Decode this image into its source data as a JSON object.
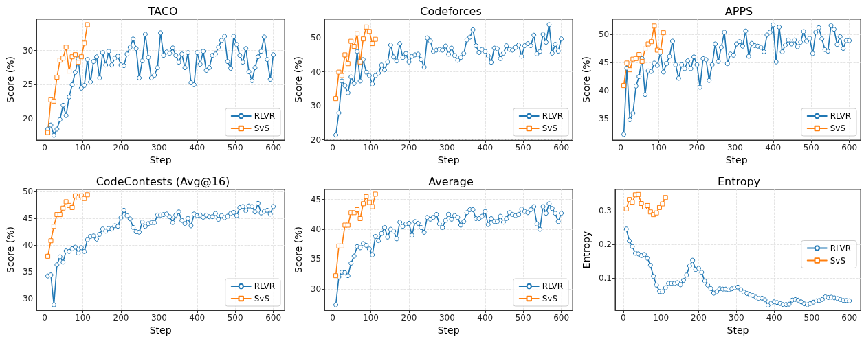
{
  "chart_data": [
    {
      "type": "line",
      "title": "TACO",
      "xlabel": "Step",
      "ylabel": "Score (%)",
      "xlim": [
        -21.6,
        629.6
      ],
      "xticks": [
        0,
        100,
        200,
        300,
        400,
        500,
        600
      ],
      "ylim": [
        16.9,
        34.6
      ],
      "yticks": [
        20,
        25,
        30
      ],
      "grid": true,
      "legend": "bottom right",
      "series": [
        {
          "name": "RLVR",
          "color": "#1f77b4",
          "marker": "circle",
          "x": [
            8,
            16,
            24,
            32,
            40,
            48,
            56,
            64,
            72,
            80,
            88,
            96,
            104,
            112,
            120,
            128,
            136,
            144,
            152,
            160,
            168,
            176,
            184,
            192,
            200,
            208,
            216,
            224,
            232,
            240,
            248,
            256,
            264,
            272,
            280,
            288,
            296,
            304,
            312,
            320,
            328,
            336,
            344,
            352,
            360,
            368,
            376,
            384,
            392,
            400,
            408,
            416,
            424,
            432,
            440,
            448,
            456,
            464,
            472,
            480,
            488,
            496,
            504,
            512,
            520,
            528,
            536,
            544,
            552,
            560,
            568,
            576,
            584,
            592,
            600
          ],
          "values": [
            18.5,
            19.1,
            17.6,
            18.5,
            19.9,
            22.0,
            20.5,
            23.2,
            25.0,
            26.8,
            28.8,
            24.5,
            24.9,
            28.7,
            25.4,
            28.4,
            29.1,
            26.0,
            29.7,
            27.9,
            29.9,
            27.9,
            28.9,
            29.2,
            27.9,
            27.8,
            29.5,
            30.5,
            31.7,
            30.3,
            26.0,
            28.5,
            32.4,
            29.0,
            26.0,
            26.4,
            27.5,
            32.6,
            29.3,
            29.8,
            29.6,
            30.4,
            29.3,
            28.3,
            29.5,
            27.5,
            29.7,
            25.3,
            25.0,
            29.7,
            28.0,
            29.9,
            27.1,
            27.5,
            29.3,
            29.5,
            30.5,
            31.5,
            32.1,
            28.4,
            27.4,
            32.1,
            30.9,
            29.3,
            28.3,
            30.3,
            26.9,
            25.6,
            27.5,
            29.1,
            29.9,
            32.0,
            28.7,
            25.8,
            29.4
          ]
        },
        {
          "name": "SvS",
          "color": "#ff7f0e",
          "marker": "square",
          "x": [
            8,
            16,
            24,
            32,
            40,
            48,
            56,
            64,
            72,
            80,
            88,
            96,
            104,
            112
          ],
          "values": [
            18.0,
            22.8,
            22.6,
            26.1,
            28.6,
            28.9,
            30.5,
            27.0,
            29.1,
            29.4,
            28.3,
            29.1,
            31.1,
            33.8
          ]
        }
      ]
    },
    {
      "type": "line",
      "title": "Codeforces",
      "xlabel": "Step",
      "ylabel": "Score (%)",
      "xlim": [
        -21.6,
        629.6
      ],
      "xticks": [
        0,
        100,
        200,
        300,
        400,
        500,
        600
      ],
      "ylim": [
        19.9,
        55.5
      ],
      "yticks": [
        20,
        30,
        40,
        50
      ],
      "grid": true,
      "legend": "bottom right",
      "series": [
        {
          "name": "RLVR",
          "color": "#1f77b4",
          "marker": "circle",
          "x": [
            8,
            16,
            24,
            32,
            40,
            48,
            56,
            64,
            72,
            80,
            88,
            96,
            104,
            112,
            120,
            128,
            136,
            144,
            152,
            160,
            168,
            176,
            184,
            192,
            200,
            208,
            216,
            224,
            232,
            240,
            248,
            256,
            264,
            272,
            280,
            288,
            296,
            304,
            312,
            320,
            328,
            336,
            344,
            352,
            360,
            368,
            376,
            384,
            392,
            400,
            408,
            416,
            424,
            432,
            440,
            448,
            456,
            464,
            472,
            480,
            488,
            496,
            504,
            512,
            520,
            528,
            536,
            544,
            552,
            560,
            568,
            576,
            584,
            592,
            600
          ],
          "values": [
            21.4,
            27.9,
            37.3,
            35.9,
            33.8,
            38.5,
            36.6,
            46.0,
            37.3,
            43.6,
            39.9,
            38.9,
            36.4,
            38.9,
            39.6,
            42.0,
            40.6,
            42.9,
            47.9,
            44.4,
            43.2,
            48.3,
            44.2,
            45.4,
            42.9,
            44.6,
            45.0,
            45.2,
            43.6,
            41.4,
            50.0,
            49.1,
            46.0,
            46.4,
            46.6,
            46.4,
            47.6,
            45.2,
            47.0,
            44.8,
            43.4,
            44.2,
            45.4,
            49.4,
            50.2,
            52.4,
            47.7,
            45.7,
            46.6,
            46.0,
            44.7,
            42.8,
            47.0,
            46.8,
            43.9,
            45.5,
            47.7,
            46.6,
            46.4,
            47.2,
            47.9,
            44.6,
            47.7,
            48.3,
            47.7,
            50.8,
            45.3,
            46.0,
            51.1,
            48.7,
            53.9,
            45.5,
            48.1,
            46.1,
            49.7
          ]
        },
        {
          "name": "SvS",
          "color": "#ff7f0e",
          "marker": "square",
          "x": [
            8,
            16,
            24,
            32,
            40,
            48,
            56,
            64,
            72,
            80,
            88,
            96,
            104,
            112
          ],
          "values": [
            32.1,
            39.9,
            38.9,
            45.0,
            42.4,
            49.0,
            47.5,
            51.2,
            42.9,
            49.7,
            53.2,
            51.9,
            48.3,
            49.6
          ]
        }
      ]
    },
    {
      "type": "line",
      "title": "APPS",
      "xlabel": "Step",
      "ylabel": "Score (%)",
      "xlim": [
        -21.6,
        629.6
      ],
      "xticks": [
        0,
        100,
        200,
        300,
        400,
        500,
        600
      ],
      "ylim": [
        31.2,
        52.7
      ],
      "yticks": [
        35,
        40,
        45,
        50
      ],
      "grid": true,
      "legend": "bottom right",
      "series": [
        {
          "name": "RLVR",
          "color": "#1f77b4",
          "marker": "circle",
          "x": [
            8,
            16,
            24,
            32,
            40,
            48,
            56,
            64,
            72,
            80,
            88,
            96,
            104,
            112,
            120,
            128,
            136,
            144,
            152,
            160,
            168,
            176,
            184,
            192,
            200,
            208,
            216,
            224,
            232,
            240,
            248,
            256,
            264,
            272,
            280,
            288,
            296,
            304,
            312,
            320,
            328,
            336,
            344,
            352,
            360,
            368,
            376,
            384,
            392,
            400,
            408,
            416,
            424,
            432,
            440,
            448,
            456,
            464,
            472,
            480,
            488,
            496,
            504,
            512,
            520,
            528,
            536,
            544,
            552,
            560,
            568,
            576,
            584,
            592,
            600
          ],
          "values": [
            32.2,
            44.0,
            34.8,
            36.0,
            40.8,
            42.5,
            45.7,
            39.3,
            43.5,
            43.4,
            44.9,
            44.5,
            46.7,
            43.3,
            44.8,
            46.1,
            48.8,
            44.6,
            42.2,
            44.6,
            43.9,
            45.3,
            43.9,
            46.0,
            44.6,
            40.6,
            45.7,
            45.5,
            41.8,
            44.6,
            48.3,
            45.2,
            47.7,
            50.4,
            44.8,
            46.5,
            46.3,
            48.3,
            48.7,
            47.9,
            50.6,
            46.1,
            48.4,
            48.0,
            47.9,
            47.7,
            46.9,
            49.9,
            50.4,
            51.7,
            45.1,
            51.3,
            46.9,
            48.1,
            49.0,
            48.3,
            49.0,
            47.8,
            48.6,
            50.5,
            48.8,
            49.3,
            46.6,
            50.4,
            51.2,
            49.2,
            47.3,
            47.0,
            51.6,
            50.9,
            48.2,
            49.6,
            47.5,
            48.9,
            48.9
          ]
        },
        {
          "name": "SvS",
          "color": "#ff7f0e",
          "marker": "square",
          "x": [
            8,
            16,
            24,
            32,
            40,
            48,
            56,
            64,
            72,
            80,
            88,
            96,
            104,
            112
          ],
          "values": [
            40.9,
            44.9,
            43.7,
            45.6,
            45.7,
            46.4,
            45.2,
            47.4,
            48.3,
            48.7,
            51.5,
            47.2,
            46.9,
            50.3
          ]
        }
      ]
    },
    {
      "type": "line",
      "title": "CodeContests (Avg@16)",
      "xlabel": "Step",
      "ylabel": "Score (%)",
      "xlim": [
        -21.6,
        629.6
      ],
      "xticks": [
        0,
        100,
        200,
        300,
        400,
        500,
        600
      ],
      "ylim": [
        27.8,
        50.4
      ],
      "yticks": [
        30,
        35,
        40,
        45,
        50
      ],
      "grid": true,
      "legend": "bottom right",
      "series": [
        {
          "name": "RLVR",
          "color": "#1f77b4",
          "marker": "circle",
          "x": [
            8,
            16,
            24,
            32,
            40,
            48,
            56,
            64,
            72,
            80,
            88,
            96,
            104,
            112,
            120,
            128,
            136,
            144,
            152,
            160,
            168,
            176,
            184,
            192,
            200,
            208,
            216,
            224,
            232,
            240,
            248,
            256,
            264,
            272,
            280,
            288,
            296,
            304,
            312,
            320,
            328,
            336,
            344,
            352,
            360,
            368,
            376,
            384,
            392,
            400,
            408,
            416,
            424,
            432,
            440,
            448,
            456,
            464,
            472,
            480,
            488,
            496,
            504,
            512,
            520,
            528,
            536,
            544,
            552,
            560,
            568,
            576,
            584,
            592,
            600
          ],
          "values": [
            34.2,
            34.4,
            28.8,
            36.3,
            37.8,
            36.8,
            38.9,
            38.8,
            39.3,
            39.6,
            38.5,
            39.5,
            38.8,
            41.0,
            41.6,
            41.7,
            41.1,
            42.0,
            43.0,
            42.6,
            43.1,
            43.0,
            43.6,
            43.5,
            45.1,
            46.5,
            45.5,
            44.9,
            43.3,
            42.5,
            42.4,
            44.3,
            43.5,
            44.0,
            44.2,
            44.2,
            45.6,
            45.6,
            45.7,
            45.8,
            45.3,
            44.2,
            45.6,
            46.2,
            44.6,
            44.0,
            45.0,
            43.6,
            45.8,
            45.5,
            45.6,
            45.2,
            45.6,
            45.3,
            45.3,
            45.9,
            44.8,
            45.5,
            45.1,
            45.4,
            45.9,
            46.1,
            45.5,
            47.0,
            47.2,
            46.4,
            47.3,
            47.2,
            46.2,
            47.8,
            46.0,
            46.3,
            46.5,
            45.8,
            47.2
          ]
        },
        {
          "name": "SvS",
          "color": "#ff7f0e",
          "marker": "square",
          "x": [
            8,
            16,
            24,
            32,
            40,
            48,
            56,
            64,
            72,
            80,
            88,
            96,
            104,
            112
          ],
          "values": [
            37.9,
            40.8,
            43.5,
            45.7,
            45.7,
            46.9,
            48.1,
            47.4,
            47.0,
            49.2,
            48.8,
            49.2,
            48.7,
            49.4
          ]
        }
      ]
    },
    {
      "type": "line",
      "title": "Average",
      "xlabel": "Step",
      "ylabel": "Score (%)",
      "xlim": [
        -21.6,
        629.6
      ],
      "xticks": [
        0,
        100,
        200,
        300,
        400,
        500,
        600
      ],
      "ylim": [
        26.4,
        46.7
      ],
      "yticks": [
        30,
        35,
        40,
        45
      ],
      "grid": true,
      "legend": "bottom right",
      "series": [
        {
          "name": "RLVR",
          "color": "#1f77b4",
          "marker": "circle",
          "x": [
            8,
            16,
            24,
            32,
            40,
            48,
            56,
            64,
            72,
            80,
            88,
            96,
            104,
            112,
            120,
            128,
            136,
            144,
            152,
            160,
            168,
            176,
            184,
            192,
            200,
            208,
            216,
            224,
            232,
            240,
            248,
            256,
            264,
            272,
            280,
            288,
            296,
            304,
            312,
            320,
            328,
            336,
            344,
            352,
            360,
            368,
            376,
            384,
            392,
            400,
            408,
            416,
            424,
            432,
            440,
            448,
            456,
            464,
            472,
            480,
            488,
            496,
            504,
            512,
            520,
            528,
            536,
            544,
            552,
            560,
            568,
            576,
            584,
            592,
            600
          ],
          "values": [
            27.3,
            32.0,
            32.8,
            32.7,
            32.2,
            34.3,
            35.5,
            37.1,
            36.9,
            37.6,
            37.3,
            36.7,
            35.7,
            38.8,
            38.1,
            39.3,
            40.3,
            38.7,
            40.0,
            39.7,
            38.4,
            41.2,
            40.5,
            40.9,
            41.0,
            39.0,
            41.3,
            41.0,
            40.3,
            39.5,
            42.0,
            41.7,
            42.0,
            42.5,
            40.9,
            40.3,
            41.5,
            42.5,
            41.7,
            42.3,
            42.0,
            40.7,
            41.3,
            42.8,
            43.3,
            43.3,
            41.8,
            41.8,
            42.2,
            43.0,
            40.8,
            41.8,
            41.3,
            41.3,
            42.2,
            41.2,
            41.8,
            42.8,
            42.5,
            42.3,
            42.5,
            43.4,
            43.0,
            42.8,
            43.3,
            43.8,
            40.9,
            40.0,
            43.8,
            42.7,
            44.3,
            43.5,
            42.7,
            41.3,
            42.7
          ]
        },
        {
          "name": "SvS",
          "color": "#ff7f0e",
          "marker": "square",
          "x": [
            8,
            16,
            24,
            32,
            40,
            48,
            56,
            64,
            72,
            80,
            88,
            96,
            104,
            112
          ],
          "values": [
            32.2,
            37.2,
            37.2,
            40.7,
            40.7,
            42.8,
            42.8,
            43.3,
            41.8,
            44.3,
            45.5,
            44.5,
            43.8,
            45.9
          ]
        }
      ]
    },
    {
      "type": "line",
      "title": "Entropy",
      "xlabel": "Step",
      "ylabel": "Entropy",
      "xlim": [
        -21.6,
        629.6
      ],
      "xticks": [
        0,
        100,
        200,
        300,
        400,
        500,
        600
      ],
      "ylim": [
        0.004,
        0.364
      ],
      "yticks": [
        0.1,
        0.2,
        0.3
      ],
      "grid": true,
      "legend": "right",
      "series": [
        {
          "name": "RLVR",
          "color": "#1f77b4",
          "marker": "circle",
          "x": [
            8,
            16,
            24,
            32,
            40,
            48,
            56,
            64,
            72,
            80,
            88,
            96,
            104,
            112,
            120,
            128,
            136,
            144,
            152,
            160,
            168,
            176,
            184,
            192,
            200,
            208,
            216,
            224,
            232,
            240,
            248,
            256,
            264,
            272,
            280,
            288,
            296,
            304,
            312,
            320,
            328,
            336,
            344,
            352,
            360,
            368,
            376,
            384,
            392,
            400,
            408,
            416,
            424,
            432,
            440,
            448,
            456,
            464,
            472,
            480,
            488,
            496,
            504,
            512,
            520,
            528,
            536,
            544,
            552,
            560,
            568,
            576,
            584,
            592,
            600
          ],
          "values": [
            0.246,
            0.211,
            0.194,
            0.174,
            0.172,
            0.167,
            0.17,
            0.159,
            0.138,
            0.105,
            0.079,
            0.06,
            0.059,
            0.071,
            0.084,
            0.084,
            0.084,
            0.086,
            0.08,
            0.093,
            0.109,
            0.136,
            0.153,
            0.125,
            0.129,
            0.117,
            0.091,
            0.079,
            0.069,
            0.055,
            0.059,
            0.068,
            0.067,
            0.067,
            0.065,
            0.068,
            0.071,
            0.073,
            0.065,
            0.058,
            0.054,
            0.05,
            0.048,
            0.043,
            0.039,
            0.04,
            0.035,
            0.019,
            0.025,
            0.029,
            0.027,
            0.024,
            0.021,
            0.021,
            0.022,
            0.034,
            0.036,
            0.034,
            0.029,
            0.023,
            0.02,
            0.024,
            0.028,
            0.032,
            0.033,
            0.036,
            0.044,
            0.042,
            0.043,
            0.041,
            0.039,
            0.036,
            0.033,
            0.033,
            0.032
          ]
        },
        {
          "name": "SvS",
          "color": "#ff7f0e",
          "marker": "square",
          "x": [
            8,
            16,
            24,
            32,
            40,
            48,
            56,
            64,
            72,
            80,
            88,
            96,
            104,
            112
          ],
          "values": [
            0.306,
            0.334,
            0.326,
            0.348,
            0.349,
            0.322,
            0.312,
            0.316,
            0.297,
            0.289,
            0.294,
            0.31,
            0.321,
            0.34
          ]
        }
      ]
    }
  ]
}
